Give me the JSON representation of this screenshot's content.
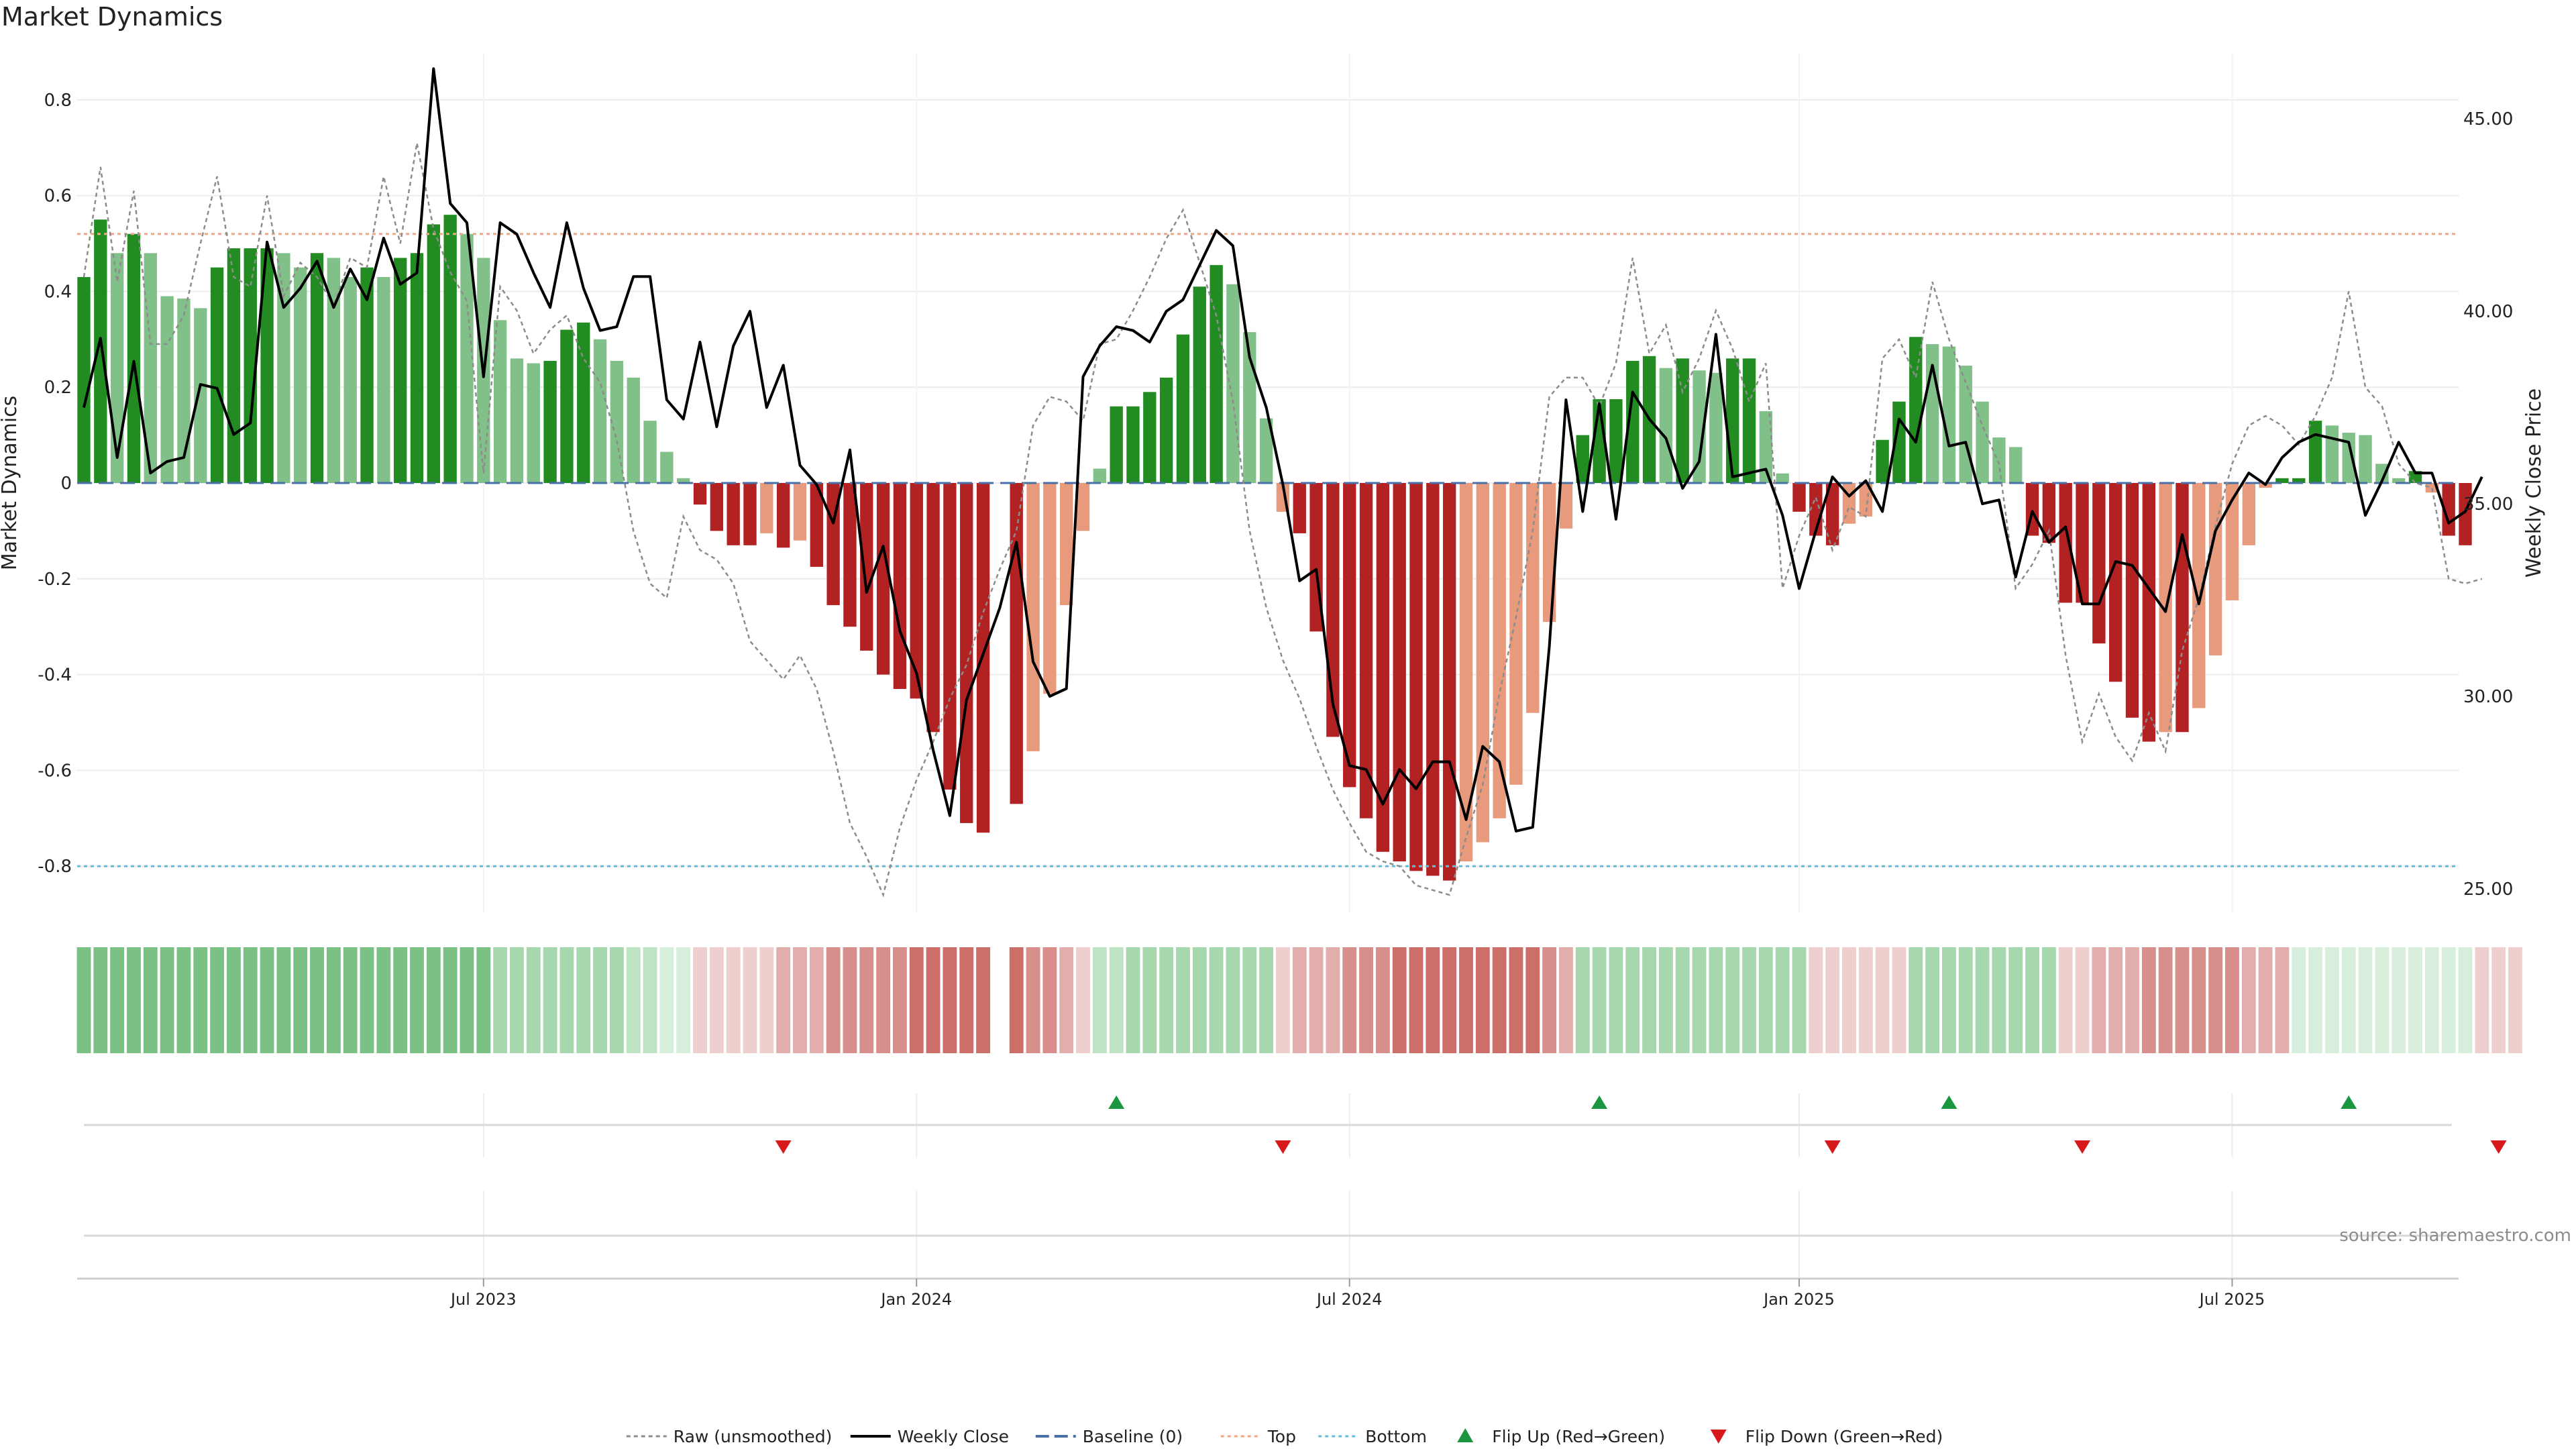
{
  "title": "Market Dynamics",
  "source_note": "source: sharemaestro.com",
  "colors": {
    "green_strong": "#228b22",
    "green_light": "#82c08a",
    "red_strong": "#b22222",
    "red_light": "#e79a7c",
    "raw_line": "#8c8c8c",
    "close_line": "#000000",
    "baseline": "#4a6fa5",
    "top": "#f4a582",
    "bottom": "#5bc0de",
    "flip_up": "#1a9641",
    "flip_down": "#d7191c"
  },
  "legend": [
    {
      "label": "Raw (unsmoothed)",
      "style": "dotted-gray"
    },
    {
      "label": "Weekly Close",
      "style": "solid-black"
    },
    {
      "label": "Baseline (0)",
      "style": "dashed-blue"
    },
    {
      "label": "Top",
      "style": "dotted-orange"
    },
    {
      "label": "Bottom",
      "style": "dotted-cyan"
    },
    {
      "label": "Flip Up (Red→Green)",
      "style": "triangle-up-green"
    },
    {
      "label": "Flip Down (Green→Red)",
      "style": "triangle-down-red"
    }
  ],
  "chart_data": {
    "type": "bar",
    "title": "Market Dynamics",
    "ylabel": "Market Dynamics",
    "y2label": "Weekly Close Price",
    "ylim": [
      -0.9,
      0.9
    ],
    "y2lim": [
      24.5,
      46.5
    ],
    "yticks": [
      "0.8",
      "0.6",
      "0.4",
      "0.2",
      "0",
      "-0.2",
      "-0.4",
      "-0.6",
      "-0.8"
    ],
    "y2ticks": [
      "45.00",
      "40.00",
      "35.00",
      "30.00",
      "25.00"
    ],
    "xticks": [
      "Jul 2023",
      "Jan 2024",
      "Jul 2024",
      "Jan 2025",
      "Jul 2025"
    ],
    "top_level": 0.52,
    "bottom_level": -0.8,
    "baseline": 0,
    "grid": true,
    "legend_position": "bottom-center",
    "bar_values": [
      0.43,
      0.55,
      0.48,
      0.52,
      0.48,
      0.39,
      0.385,
      0.365,
      0.45,
      0.49,
      0.49,
      0.49,
      0.48,
      0.45,
      0.48,
      0.47,
      0.43,
      0.45,
      0.43,
      0.47,
      0.48,
      0.54,
      0.56,
      0.52,
      0.47,
      0.34,
      0.26,
      0.25,
      0.255,
      0.32,
      0.335,
      0.3,
      0.255,
      0.22,
      0.13,
      0.065,
      0.01,
      -0.045,
      -0.1,
      -0.13,
      -0.13,
      -0.105,
      -0.135,
      -0.12,
      -0.175,
      -0.255,
      -0.3,
      -0.35,
      -0.4,
      -0.43,
      -0.45,
      -0.52,
      -0.64,
      -0.71,
      -0.73,
      null,
      -0.67,
      -0.56,
      -0.44,
      -0.255,
      -0.1,
      0.03,
      0.16,
      0.16,
      0.19,
      0.22,
      0.31,
      0.41,
      0.455,
      0.415,
      0.315,
      0.135,
      -0.06,
      -0.105,
      -0.31,
      -0.53,
      -0.635,
      -0.7,
      -0.77,
      -0.79,
      -0.81,
      -0.82,
      -0.83,
      -0.79,
      -0.75,
      -0.7,
      -0.63,
      -0.48,
      -0.29,
      -0.095,
      0.1,
      0.175,
      0.175,
      0.255,
      0.265,
      0.24,
      0.26,
      0.235,
      0.23,
      0.26,
      0.26,
      0.15,
      0.02,
      -0.06,
      -0.11,
      -0.13,
      -0.085,
      -0.07,
      0.09,
      0.17,
      0.305,
      0.29,
      0.285,
      0.245,
      0.17,
      0.095,
      0.075,
      -0.11,
      -0.125,
      -0.25,
      -0.25,
      -0.335,
      -0.415,
      -0.49,
      -0.54,
      -0.52,
      -0.52,
      -0.47,
      -0.36,
      -0.245,
      -0.13,
      -0.01,
      0.01,
      0.01,
      0.13,
      0.12,
      0.105,
      0.1,
      0.04,
      0.01,
      0.025,
      -0.02,
      -0.11,
      -0.13
    ],
    "raw_values": [
      0.43,
      0.66,
      0.42,
      0.61,
      0.29,
      0.29,
      0.35,
      0.5,
      0.64,
      0.43,
      0.41,
      0.6,
      0.39,
      0.46,
      0.43,
      0.37,
      0.47,
      0.45,
      0.64,
      0.5,
      0.71,
      0.53,
      0.44,
      0.38,
      0.02,
      0.41,
      0.36,
      0.27,
      0.32,
      0.35,
      0.26,
      0.21,
      0.09,
      -0.1,
      -0.21,
      -0.24,
      -0.07,
      -0.14,
      -0.16,
      -0.21,
      -0.33,
      -0.37,
      -0.41,
      -0.36,
      -0.43,
      -0.56,
      -0.71,
      -0.78,
      -0.86,
      -0.72,
      -0.62,
      -0.54,
      -0.45,
      -0.38,
      -0.27,
      -0.18,
      -0.1,
      0.12,
      0.18,
      0.17,
      0.13,
      0.29,
      0.3,
      0.36,
      0.43,
      0.51,
      0.57,
      0.46,
      0.35,
      0.17,
      -0.1,
      -0.26,
      -0.37,
      -0.45,
      -0.55,
      -0.64,
      -0.71,
      -0.77,
      -0.79,
      -0.8,
      -0.84,
      -0.85,
      -0.86,
      -0.74,
      -0.63,
      -0.44,
      -0.28,
      -0.1,
      0.18,
      0.22,
      0.22,
      0.16,
      0.25,
      0.47,
      0.27,
      0.33,
      0.19,
      0.26,
      0.36,
      0.28,
      0.17,
      0.25,
      -0.22,
      -0.11,
      -0.03,
      -0.14,
      -0.05,
      -0.07,
      0.26,
      0.3,
      0.22,
      0.42,
      0.3,
      0.21,
      0.12,
      0.04,
      -0.22,
      -0.17,
      -0.1,
      -0.36,
      -0.54,
      -0.44,
      -0.53,
      -0.58,
      -0.48,
      -0.56,
      -0.35,
      -0.24,
      -0.09,
      0.04,
      0.12,
      0.14,
      0.12,
      0.08,
      0.14,
      0.22,
      0.4,
      0.2,
      0.16,
      0.04,
      0.0,
      -0.01,
      -0.2,
      -0.21,
      -0.2
    ],
    "close_values": [
      37.5,
      39.3,
      36.2,
      38.7,
      35.8,
      36.1,
      36.2,
      38.1,
      38.0,
      36.8,
      37.1,
      41.8,
      40.1,
      40.6,
      41.3,
      40.1,
      41.1,
      40.3,
      41.9,
      40.7,
      41.0,
      46.3,
      42.8,
      42.3,
      38.3,
      42.3,
      42.0,
      41.0,
      40.1,
      42.3,
      40.6,
      39.5,
      39.6,
      40.9,
      40.9,
      37.7,
      37.2,
      39.2,
      37.0,
      39.1,
      40.0,
      37.5,
      38.6,
      36.0,
      35.5,
      34.5,
      36.4,
      32.7,
      33.9,
      31.7,
      30.6,
      28.6,
      26.9,
      29.9,
      31.1,
      32.3,
      34.0,
      30.9,
      30.0,
      30.2,
      38.3,
      39.1,
      39.6,
      39.5,
      39.2,
      40.0,
      40.3,
      41.2,
      42.1,
      41.7,
      38.8,
      37.5,
      35.5,
      33.0,
      33.3,
      29.8,
      28.2,
      28.1,
      27.2,
      28.1,
      27.6,
      28.3,
      28.3,
      26.8,
      28.7,
      28.3,
      26.5,
      26.6,
      31.3,
      37.7,
      34.8,
      37.6,
      34.6,
      37.9,
      37.2,
      36.7,
      35.4,
      36.1,
      39.4,
      35.7,
      35.8,
      35.9,
      34.7,
      32.8,
      34.3,
      35.7,
      35.2,
      35.6,
      34.8,
      37.2,
      36.6,
      38.6,
      36.5,
      36.6,
      35.0,
      35.1,
      33.1,
      34.8,
      34.0,
      34.4,
      32.4,
      32.4,
      33.5,
      33.4,
      32.8,
      32.2,
      34.2,
      32.4,
      34.3,
      35.1,
      35.8,
      35.5,
      36.2,
      36.6,
      36.8,
      36.7,
      36.6,
      34.7,
      35.6,
      36.6,
      35.8,
      35.8,
      34.5,
      34.8,
      35.7
    ],
    "mood_strip": [
      "gl",
      "gl",
      "gl",
      "gl",
      "gl",
      "gl",
      "gl",
      "gl",
      "gl",
      "gl",
      "gl",
      "gl",
      "gl",
      "gl",
      "gl",
      "gl",
      "gl",
      "gl",
      "gl",
      "gl",
      "gl",
      "gl",
      "gl",
      "gl",
      "gl",
      "gm",
      "gm",
      "gm",
      "gm",
      "gm",
      "gm",
      "gm",
      "gm",
      "gp",
      "gp",
      "gv",
      "gv",
      "rv",
      "rv",
      "rv",
      "rv",
      "rv",
      "rp",
      "rp",
      "rp",
      "rm",
      "rm",
      "rm",
      "rm",
      "rm",
      "rl",
      "rl",
      "rl",
      "rl",
      "rl",
      null,
      "rl",
      "rm",
      "rm",
      "rp",
      "rv",
      "gp",
      "gp",
      "gm",
      "gm",
      "gm",
      "gm",
      "gm",
      "gm",
      "gm",
      "gm",
      "gm",
      "rv",
      "rp",
      "rp",
      "rp",
      "rm",
      "rm",
      "rm",
      "rl",
      "rl",
      "rl",
      "rl",
      "rl",
      "rl",
      "rl",
      "rl",
      "rl",
      "rm",
      "rp",
      "gm",
      "gm",
      "gm",
      "gm",
      "gm",
      "gm",
      "gm",
      "gm",
      "gm",
      "gm",
      "gm",
      "gm",
      "gm",
      "gm",
      "rv",
      "rv",
      "rv",
      "rv",
      "rv",
      "rv",
      "gm",
      "gm",
      "gm",
      "gm",
      "gm",
      "gm",
      "gm",
      "gm",
      "gm",
      "rv",
      "rv",
      "rp",
      "rp",
      "rp",
      "rm",
      "rm",
      "rm",
      "rm",
      "rm",
      "rm",
      "rp",
      "rp",
      "rp",
      "gv",
      "gv",
      "gv",
      "gv",
      "gv",
      "gv",
      "gv",
      "gv",
      "gv",
      "gv",
      "gv",
      "rv",
      "rv",
      "rv"
    ],
    "flip_up_dates": [
      "2024-03-25",
      "2024-10-14",
      "2025-03-10",
      "2025-08-25"
    ],
    "flip_down_dates": [
      "2023-11-06",
      "2024-06-03",
      "2025-01-20",
      "2025-05-05",
      "2025-10-27"
    ]
  }
}
